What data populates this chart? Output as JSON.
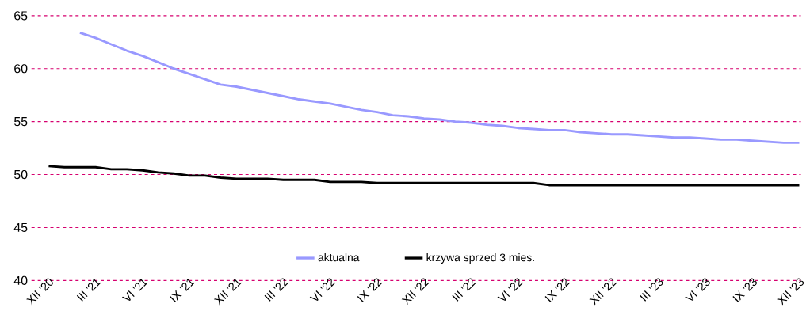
{
  "chart_data": {
    "type": "line",
    "categories": [
      "XII '20",
      null,
      null,
      "III '21",
      null,
      null,
      "VI '21",
      null,
      null,
      "IX '21",
      null,
      null,
      "XII '21",
      null,
      null,
      "III '22",
      null,
      null,
      "VI '22",
      null,
      null,
      "IX '22",
      null,
      null,
      "XII '22",
      null,
      null,
      "III '22",
      null,
      null,
      "VI '22",
      null,
      null,
      "IX '22",
      null,
      null,
      "XII '22",
      null,
      null,
      "III '23",
      null,
      null,
      "VI '23",
      null,
      null,
      "IX '23",
      null,
      null,
      "XII '23"
    ],
    "series": [
      {
        "name": "aktualna",
        "color": "#9999ff",
        "values": [
          null,
          null,
          63.4,
          62.9,
          62.3,
          61.7,
          61.2,
          60.6,
          60.0,
          59.5,
          59.0,
          58.5,
          58.3,
          58.0,
          57.7,
          57.4,
          57.1,
          56.9,
          56.7,
          56.4,
          56.1,
          55.9,
          55.6,
          55.5,
          55.3,
          55.2,
          55.0,
          54.9,
          54.7,
          54.6,
          54.4,
          54.3,
          54.2,
          54.2,
          54.0,
          53.9,
          53.8,
          53.8,
          53.7,
          53.6,
          53.5,
          53.5,
          53.4,
          53.3,
          53.3,
          53.2,
          53.1,
          53.0,
          53.0
        ]
      },
      {
        "name": "krzywa sprzed 3 mies.",
        "color": "#000000",
        "values": [
          50.8,
          50.7,
          50.7,
          50.7,
          50.5,
          50.5,
          50.4,
          50.2,
          50.1,
          49.9,
          49.9,
          49.7,
          49.6,
          49.6,
          49.6,
          49.5,
          49.5,
          49.5,
          49.3,
          49.3,
          49.3,
          49.2,
          49.2,
          49.2,
          49.2,
          49.2,
          49.2,
          49.2,
          49.2,
          49.2,
          49.2,
          49.2,
          49.0,
          49.0,
          49.0,
          49.0,
          49.0,
          49.0,
          49.0,
          49.0,
          49.0,
          49.0,
          49.0,
          49.0,
          49.0,
          49.0,
          49.0,
          49.0,
          49.0
        ]
      }
    ],
    "ylim": [
      40,
      65
    ],
    "yticks": [
      40,
      45,
      50,
      55,
      60,
      65
    ],
    "grid": "y",
    "legend": "bottom",
    "marker": "none",
    "line_style": "solid"
  }
}
